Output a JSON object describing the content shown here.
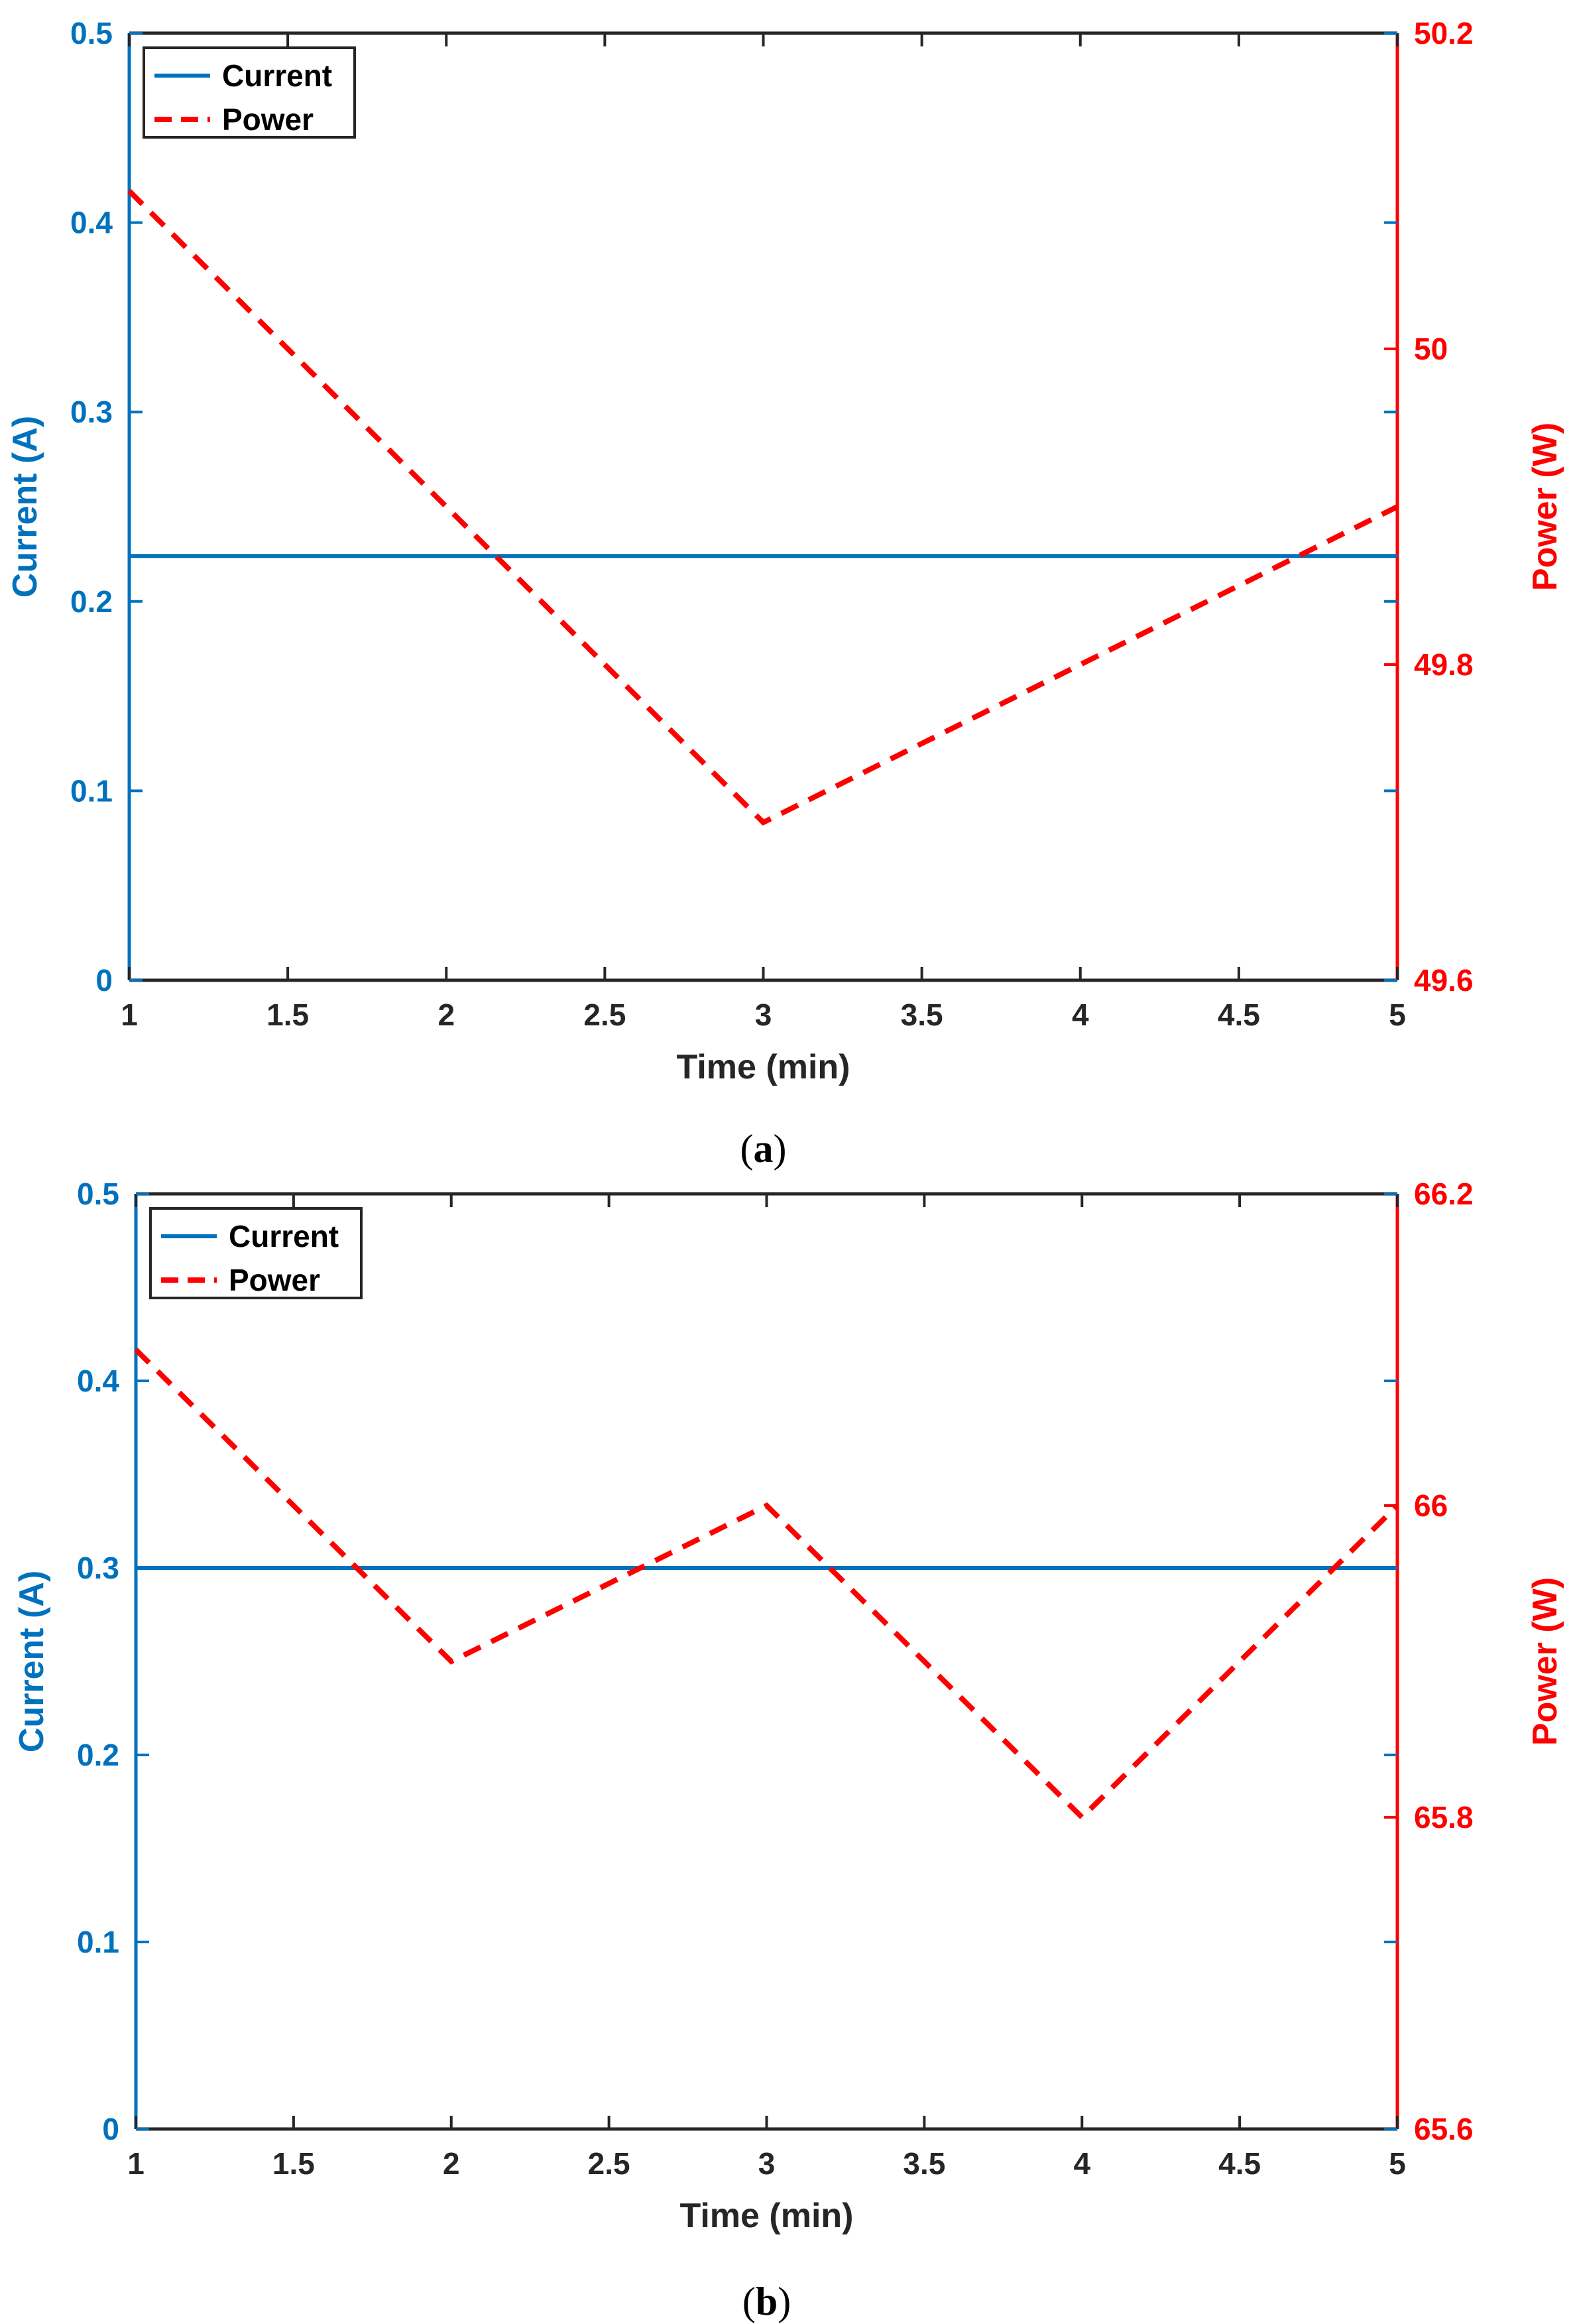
{
  "chart_data": [
    {
      "type": "line",
      "caption_letter": "a",
      "xlabel": "Time (min)",
      "ylabel_left": "Current (A)",
      "ylabel_right": "Power (W)",
      "xlim": [
        1,
        5
      ],
      "ylim_left": [
        0,
        0.5
      ],
      "ylim_right": [
        49.6,
        50.2
      ],
      "x_ticks": [
        "1",
        "1.5",
        "2",
        "2.5",
        "3",
        "3.5",
        "4",
        "4.5",
        "5"
      ],
      "y_left_ticks": [
        "0",
        "0.1",
        "0.2",
        "0.3",
        "0.4",
        "0.5"
      ],
      "y_right_ticks": [
        "49.6",
        "49.8",
        "50",
        "50.2"
      ],
      "grid": false,
      "legend_position": "top-left",
      "series": [
        {
          "name": "Current",
          "axis": "left",
          "style": "solid",
          "color": "#0072BD",
          "x": [
            1,
            2,
            3,
            4,
            5
          ],
          "y": [
            0.224,
            0.224,
            0.224,
            0.224,
            0.224
          ]
        },
        {
          "name": "Power",
          "axis": "right",
          "style": "dashed",
          "color": "#FF0000",
          "x": [
            1,
            2,
            3,
            4,
            5
          ],
          "y": [
            50.1,
            49.9,
            49.7,
            49.8,
            49.9
          ]
        }
      ]
    },
    {
      "type": "line",
      "caption_letter": "b",
      "xlabel": "Time (min)",
      "ylabel_left": "Current (A)",
      "ylabel_right": "Power (W)",
      "xlim": [
        1,
        5
      ],
      "ylim_left": [
        0,
        0.5
      ],
      "ylim_right": [
        65.6,
        66.2
      ],
      "x_ticks": [
        "1",
        "1.5",
        "2",
        "2.5",
        "3",
        "3.5",
        "4",
        "4.5",
        "5"
      ],
      "y_left_ticks": [
        "0",
        "0.1",
        "0.2",
        "0.3",
        "0.4",
        "0.5"
      ],
      "y_right_ticks": [
        "65.6",
        "65.8",
        "66",
        "66.2"
      ],
      "grid": false,
      "legend_position": "top-left",
      "series": [
        {
          "name": "Current",
          "axis": "left",
          "style": "solid",
          "color": "#0072BD",
          "x": [
            1,
            2,
            3,
            4,
            5
          ],
          "y": [
            0.3,
            0.3,
            0.3,
            0.3,
            0.3
          ]
        },
        {
          "name": "Power",
          "axis": "right",
          "style": "dashed",
          "color": "#FF0000",
          "x": [
            1,
            2,
            3,
            4,
            5
          ],
          "y": [
            66.1,
            65.9,
            66.0,
            65.8,
            66.0
          ]
        }
      ]
    }
  ]
}
